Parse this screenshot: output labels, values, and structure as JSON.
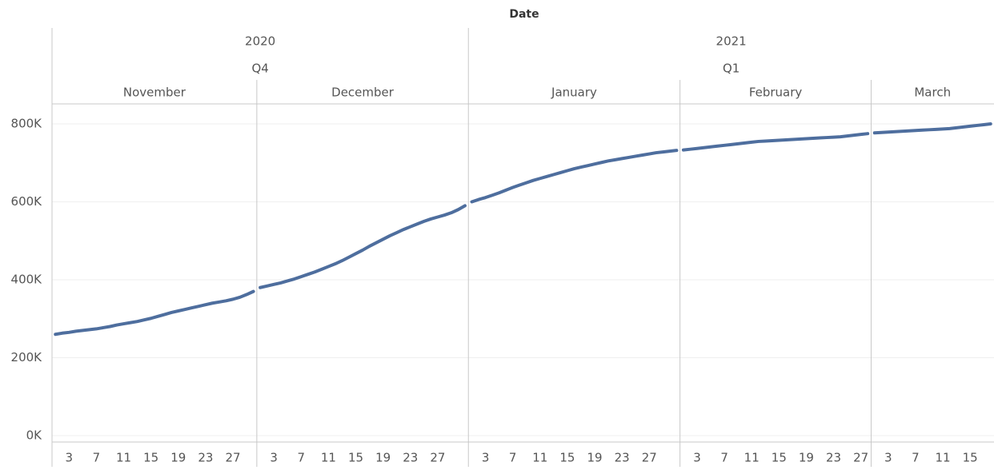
{
  "chart_data": {
    "type": "line",
    "title": "Date",
    "color": "#4e6e9e",
    "grid": true,
    "ylim": [
      0,
      800000
    ],
    "yticks": [
      {
        "value": 0,
        "label": "0K"
      },
      {
        "value": 200000,
        "label": "200K"
      },
      {
        "value": 400000,
        "label": "400K"
      },
      {
        "value": 600000,
        "label": "600K"
      },
      {
        "value": 800000,
        "label": "800K"
      }
    ],
    "years": [
      {
        "name": "2020",
        "quarters": [
          {
            "name": "Q4",
            "months": [
              {
                "name": "November",
                "xticks": [
                  3,
                  7,
                  11,
                  15,
                  19,
                  23,
                  27
                ],
                "values": [
                  260000,
                  263000,
                  265000,
                  268000,
                  270000,
                  272000,
                  274000,
                  277000,
                  280000,
                  284000,
                  287000,
                  290000,
                  293000,
                  297000,
                  301000,
                  306000,
                  311000,
                  316000,
                  320000,
                  324000,
                  328000,
                  332000,
                  336000,
                  340000,
                  343000,
                  346000,
                  350000,
                  355000,
                  362000,
                  370000
                ]
              },
              {
                "name": "December",
                "xticks": [
                  3,
                  7,
                  11,
                  15,
                  19,
                  23,
                  27
                ],
                "values": [
                  380000,
                  384000,
                  388000,
                  392000,
                  397000,
                  402000,
                  408000,
                  414000,
                  420000,
                  427000,
                  434000,
                  441000,
                  449000,
                  458000,
                  467000,
                  476000,
                  486000,
                  495000,
                  504000,
                  513000,
                  521000,
                  529000,
                  536000,
                  543000,
                  550000,
                  556000,
                  561000,
                  566000,
                  572000,
                  580000,
                  590000
                ]
              }
            ]
          }
        ]
      },
      {
        "name": "2021",
        "quarters": [
          {
            "name": "Q1",
            "months": [
              {
                "name": "January",
                "xticks": [
                  3,
                  7,
                  11,
                  15,
                  19,
                  23,
                  27
                ],
                "values": [
                  600000,
                  606000,
                  611000,
                  617000,
                  623000,
                  630000,
                  637000,
                  643000,
                  649000,
                  655000,
                  660000,
                  665000,
                  670000,
                  675000,
                  680000,
                  685000,
                  689000,
                  693000,
                  697000,
                  701000,
                  705000,
                  708000,
                  711000,
                  714000,
                  717000,
                  720000,
                  723000,
                  726000,
                  728000,
                  730000,
                  732000
                ]
              },
              {
                "name": "February",
                "xticks": [
                  3,
                  7,
                  11,
                  15,
                  19,
                  23,
                  27
                ],
                "values": [
                  733000,
                  735000,
                  737000,
                  739000,
                  741000,
                  743000,
                  745000,
                  747000,
                  749000,
                  751000,
                  753000,
                  755000,
                  756000,
                  757000,
                  758000,
                  759000,
                  760000,
                  761000,
                  762000,
                  763000,
                  764000,
                  765000,
                  766000,
                  767000,
                  769000,
                  771000,
                  773000,
                  775000
                ]
              },
              {
                "name": "March",
                "xticks": [
                  3,
                  7,
                  11,
                  15
                ],
                "values": [
                  777000,
                  778000,
                  779000,
                  780000,
                  781000,
                  782000,
                  783000,
                  784000,
                  785000,
                  786000,
                  787000,
                  788000,
                  790000,
                  792000,
                  794000,
                  796000,
                  798000,
                  800000
                ]
              }
            ]
          }
        ]
      }
    ]
  }
}
